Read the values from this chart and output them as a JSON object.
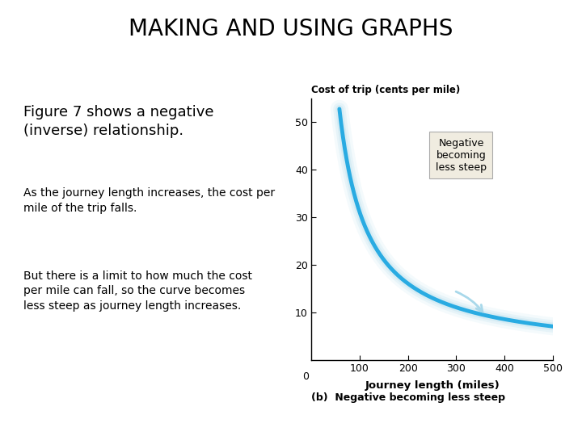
{
  "title": "MAKING AND USING GRAPHS",
  "fig_text": "Figure 7 shows a negative\n(inverse) relationship.",
  "body_text1": "As the journey length increases, the cost per\nmile of the trip falls.",
  "body_text2": "But there is a limit to how much the cost\nper mile can fall, so the curve becomes\nless steep as journey length increases.",
  "ylabel_above": "Cost of trip (cents per mile)",
  "xlabel": "Journey length (miles)",
  "caption": "(b)  Negative becoming less steep",
  "annotation_box": "Negative\nbecoming\nless steep",
  "curve_color": "#29ABE2",
  "curve_shadow_color": "#A8D8EA",
  "xlim": [
    0,
    500
  ],
  "ylim": [
    0,
    55
  ],
  "xticks": [
    100,
    200,
    300,
    400,
    500
  ],
  "yticks": [
    10,
    20,
    30,
    40,
    50
  ],
  "background_color": "#ffffff",
  "box_bg_color": "#f0ece0",
  "box_edge_color": "#aaaaaa",
  "curve_A": 3000,
  "curve_C": 1,
  "curve_x_start": 58,
  "curve_x_end": 500
}
